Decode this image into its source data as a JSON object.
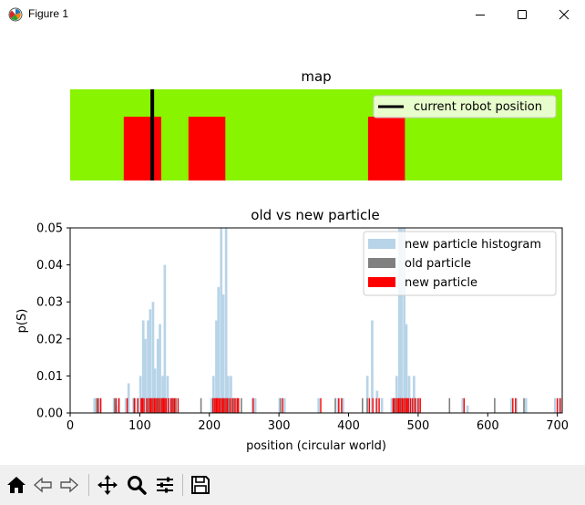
{
  "window": {
    "title": "Figure 1",
    "controls": [
      "minimize",
      "maximize",
      "close"
    ]
  },
  "figure": {
    "map": {
      "title": "map",
      "legend_label": "current robot position",
      "background_color": "#88f400",
      "obstacle_color": "#ff0000",
      "robot_color": "#000000"
    },
    "particles": {
      "title": "old vs new particle",
      "xlabel": "position (circular world)",
      "ylabel": "p(S)",
      "legend": [
        {
          "label": "new particle histogram",
          "color": "#b8d4e8"
        },
        {
          "label": "old particle",
          "color": "#808080"
        },
        {
          "label": "new particle",
          "color": "#ff0000"
        }
      ],
      "xticks": [
        "0",
        "100",
        "200",
        "300",
        "400",
        "500",
        "600",
        "700"
      ],
      "yticks": [
        "0.00",
        "0.01",
        "0.02",
        "0.03",
        "0.04",
        "0.05"
      ]
    }
  },
  "chart_data": [
    {
      "type": "bar",
      "title": "map",
      "xlim": [
        0,
        707
      ],
      "series": [
        {
          "name": "current robot position",
          "robot_x": 118
        }
      ],
      "obstacles": [
        [
          77,
          131
        ],
        [
          170,
          223
        ],
        [
          428,
          481
        ]
      ],
      "grid": false,
      "legend_placement": "top-right"
    },
    {
      "type": "bar",
      "title": "old vs new particle",
      "xlabel": "position (circular world)",
      "ylabel": "p(S)",
      "xlim": [
        0,
        707
      ],
      "ylim": [
        0,
        0.05
      ],
      "grid": false,
      "legend_placement": "top-right",
      "series": [
        {
          "name": "new particle histogram",
          "bin_width": 3.5,
          "bins": [
            [
              35,
              0.004
            ],
            [
              42,
              0.004
            ],
            [
              63,
              0.004
            ],
            [
              66,
              0.002
            ],
            [
              70,
              0.004
            ],
            [
              80,
              0.004
            ],
            [
              84,
              0.008
            ],
            [
              91,
              0.004
            ],
            [
              98,
              0.004
            ],
            [
              101,
              0.01
            ],
            [
              105,
              0.025
            ],
            [
              108,
              0.02
            ],
            [
              112,
              0.025
            ],
            [
              115,
              0.028
            ],
            [
              119,
              0.03
            ],
            [
              122,
              0.012
            ],
            [
              126,
              0.02
            ],
            [
              129,
              0.024
            ],
            [
              133,
              0.01
            ],
            [
              136,
              0.04
            ],
            [
              140,
              0.01
            ],
            [
              143,
              0.004
            ],
            [
              147,
              0.004
            ],
            [
              150,
              0.004
            ],
            [
              203,
              0.004
            ],
            [
              206,
              0.01
            ],
            [
              210,
              0.025
            ],
            [
              213,
              0.034
            ],
            [
              217,
              0.05
            ],
            [
              220,
              0.032
            ],
            [
              224,
              0.05
            ],
            [
              227,
              0.01
            ],
            [
              231,
              0.01
            ],
            [
              234,
              0.004
            ],
            [
              238,
              0.004
            ],
            [
              241,
              0.004
            ],
            [
              262,
              0.004
            ],
            [
              266,
              0.004
            ],
            [
              301,
              0.004
            ],
            [
              308,
              0.004
            ],
            [
              357,
              0.004
            ],
            [
              385,
              0.004
            ],
            [
              392,
              0.004
            ],
            [
              427,
              0.01
            ],
            [
              434,
              0.025
            ],
            [
              441,
              0.006
            ],
            [
              448,
              0.004
            ],
            [
              462,
              0.004
            ],
            [
              466,
              0.004
            ],
            [
              469,
              0.01
            ],
            [
              473,
              0.05
            ],
            [
              476,
              0.05
            ],
            [
              480,
              0.05
            ],
            [
              483,
              0.024
            ],
            [
              487,
              0.01
            ],
            [
              490,
              0.004
            ],
            [
              494,
              0.01
            ],
            [
              497,
              0.004
            ],
            [
              501,
              0.004
            ],
            [
              564,
              0.004
            ],
            [
              571,
              0.002
            ],
            [
              634,
              0.004
            ],
            [
              641,
              0.004
            ],
            [
              655,
              0.004
            ],
            [
              697,
              0.004
            ],
            [
              704,
              0.004
            ]
          ]
        },
        {
          "name": "old particle",
          "height": 0.004,
          "positions": [
            38,
            64,
            93,
            103,
            112,
            120,
            124,
            127,
            131,
            135,
            146,
            152,
            188,
            207,
            211,
            218,
            222,
            228,
            235,
            246,
            302,
            381,
            420,
            427,
            468,
            475,
            481,
            495,
            545,
            610,
            652
          ]
        },
        {
          "name": "new particle",
          "height": 0.004,
          "positions": [
            40,
            44,
            66,
            70,
            82,
            92,
            97,
            102,
            104,
            106,
            110,
            114,
            116,
            118,
            121,
            123,
            126,
            129,
            132,
            134,
            136,
            138,
            141,
            145,
            148,
            150,
            155,
            205,
            208,
            210,
            212,
            214,
            216,
            219,
            221,
            224,
            226,
            230,
            233,
            237,
            240,
            242,
            263,
            305,
            360,
            386,
            390,
            430,
            435,
            440,
            444,
            464,
            466,
            470,
            472,
            474,
            477,
            479,
            482,
            484,
            486,
            489,
            492,
            496,
            500,
            503,
            566,
            636,
            640,
            700,
            704
          ]
        }
      ]
    }
  ]
}
